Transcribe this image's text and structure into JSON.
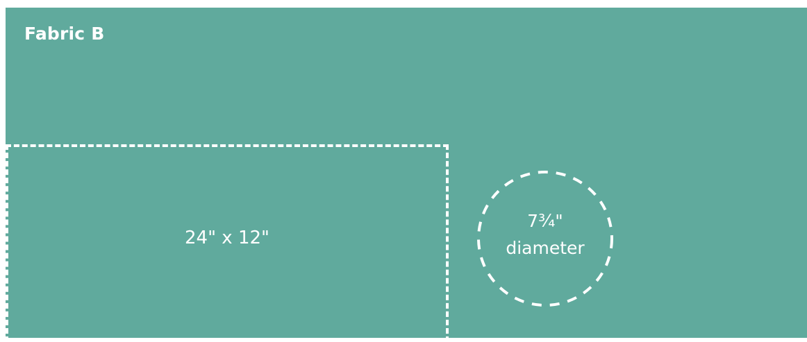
{
  "title": "Fabric B",
  "pieces": {
    "rectangle": {
      "label": "24\" x 12\""
    },
    "circle": {
      "label_line1": "7¾\"",
      "label_line2": "diameter"
    }
  },
  "colors": {
    "fabric": "#60aa9d",
    "cut_line": "#ffffff",
    "text": "#ffffff",
    "background": "#ffffff"
  }
}
